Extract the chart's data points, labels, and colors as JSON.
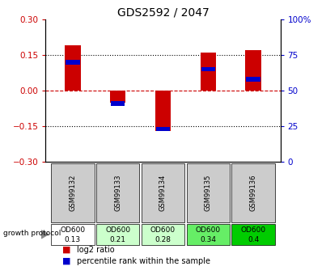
{
  "title": "GDS2592 / 2047",
  "samples": [
    "GSM99132",
    "GSM99133",
    "GSM99134",
    "GSM99135",
    "GSM99136"
  ],
  "log2_ratio": [
    0.19,
    -0.05,
    -0.17,
    0.16,
    0.17
  ],
  "percentile_rank_pct": [
    70,
    41,
    23,
    65,
    58
  ],
  "od600_values": [
    "0.13",
    "0.21",
    "0.28",
    "0.34",
    "0.4"
  ],
  "od600_colors": [
    "#ffffff",
    "#ccffcc",
    "#ccffcc",
    "#66ee66",
    "#00cc00"
  ],
  "ylim": [
    -0.3,
    0.3
  ],
  "yticks_left": [
    -0.3,
    -0.15,
    0.0,
    0.15,
    0.3
  ],
  "yticks_right": [
    0,
    25,
    50,
    75,
    100
  ],
  "bar_color": "#cc0000",
  "percentile_color": "#0000cc",
  "bar_width": 0.35,
  "figsize": [
    4.03,
    3.45
  ],
  "dpi": 100,
  "bg_color": "#ffffff",
  "header_bg": "#cccccc",
  "zero_line_color": "#cc0000",
  "left_tick_color": "#cc0000",
  "right_tick_color": "#0000cc"
}
